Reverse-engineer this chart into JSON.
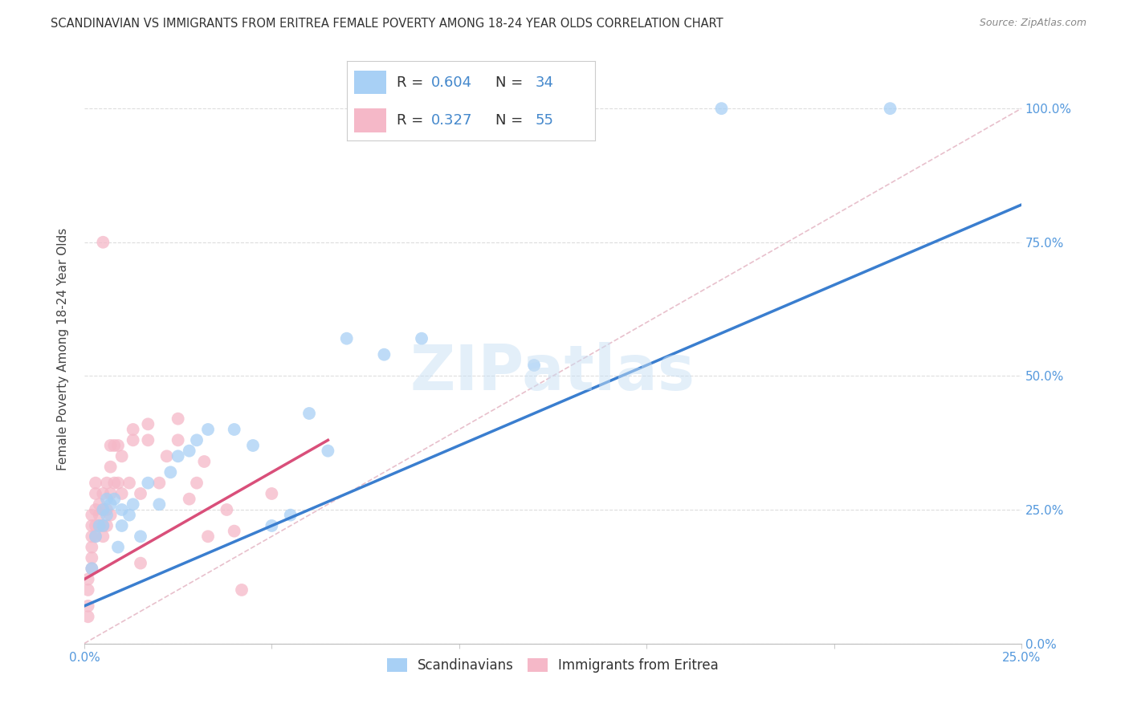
{
  "title": "SCANDINAVIAN VS IMMIGRANTS FROM ERITREA FEMALE POVERTY AMONG 18-24 YEAR OLDS CORRELATION CHART",
  "source": "Source: ZipAtlas.com",
  "ylabel": "Female Poverty Among 18-24 Year Olds",
  "ytick_labels": [
    "0.0%",
    "25.0%",
    "50.0%",
    "75.0%",
    "100.0%"
  ],
  "ytick_values": [
    0,
    0.25,
    0.5,
    0.75,
    1.0
  ],
  "xtick_labels": [
    "0.0%",
    "",
    "",
    "",
    "",
    "25.0%"
  ],
  "xtick_values": [
    0,
    0.05,
    0.1,
    0.15,
    0.2,
    0.25
  ],
  "xlim": [
    0,
    0.25
  ],
  "ylim": [
    0,
    1.1
  ],
  "background_color": "#ffffff",
  "grid_color": "#dddddd",
  "legend_blue_label": "Scandinavians",
  "legend_pink_label": "Immigrants from Eritrea",
  "legend_R_blue": "0.604",
  "legend_N_blue": "34",
  "legend_R_pink": "0.327",
  "legend_N_pink": "55",
  "watermark": "ZIPatlas",
  "blue_color": "#a8d0f5",
  "pink_color": "#f5b8c8",
  "regression_blue_color": "#3a7ecf",
  "regression_pink_color": "#d94f7a",
  "diagonal_color": "#d0d0d0",
  "blue_points": [
    [
      0.002,
      0.14
    ],
    [
      0.003,
      0.2
    ],
    [
      0.004,
      0.22
    ],
    [
      0.005,
      0.22
    ],
    [
      0.005,
      0.25
    ],
    [
      0.006,
      0.24
    ],
    [
      0.006,
      0.27
    ],
    [
      0.007,
      0.26
    ],
    [
      0.008,
      0.27
    ],
    [
      0.009,
      0.18
    ],
    [
      0.01,
      0.22
    ],
    [
      0.01,
      0.25
    ],
    [
      0.012,
      0.24
    ],
    [
      0.013,
      0.26
    ],
    [
      0.015,
      0.2
    ],
    [
      0.017,
      0.3
    ],
    [
      0.02,
      0.26
    ],
    [
      0.023,
      0.32
    ],
    [
      0.025,
      0.35
    ],
    [
      0.028,
      0.36
    ],
    [
      0.03,
      0.38
    ],
    [
      0.033,
      0.4
    ],
    [
      0.04,
      0.4
    ],
    [
      0.045,
      0.37
    ],
    [
      0.05,
      0.22
    ],
    [
      0.055,
      0.24
    ],
    [
      0.06,
      0.43
    ],
    [
      0.065,
      0.36
    ],
    [
      0.07,
      0.57
    ],
    [
      0.08,
      0.54
    ],
    [
      0.09,
      0.57
    ],
    [
      0.12,
      0.52
    ],
    [
      0.17,
      1.0
    ],
    [
      0.215,
      1.0
    ]
  ],
  "pink_points": [
    [
      0.001,
      0.05
    ],
    [
      0.001,
      0.07
    ],
    [
      0.001,
      0.1
    ],
    [
      0.001,
      0.12
    ],
    [
      0.002,
      0.14
    ],
    [
      0.002,
      0.16
    ],
    [
      0.002,
      0.18
    ],
    [
      0.002,
      0.2
    ],
    [
      0.002,
      0.22
    ],
    [
      0.002,
      0.24
    ],
    [
      0.003,
      0.2
    ],
    [
      0.003,
      0.22
    ],
    [
      0.003,
      0.25
    ],
    [
      0.003,
      0.28
    ],
    [
      0.003,
      0.3
    ],
    [
      0.004,
      0.22
    ],
    [
      0.004,
      0.24
    ],
    [
      0.004,
      0.26
    ],
    [
      0.005,
      0.2
    ],
    [
      0.005,
      0.22
    ],
    [
      0.005,
      0.25
    ],
    [
      0.005,
      0.28
    ],
    [
      0.006,
      0.22
    ],
    [
      0.006,
      0.25
    ],
    [
      0.006,
      0.3
    ],
    [
      0.007,
      0.24
    ],
    [
      0.007,
      0.28
    ],
    [
      0.007,
      0.33
    ],
    [
      0.007,
      0.37
    ],
    [
      0.008,
      0.3
    ],
    [
      0.008,
      0.37
    ],
    [
      0.009,
      0.3
    ],
    [
      0.009,
      0.37
    ],
    [
      0.01,
      0.28
    ],
    [
      0.01,
      0.35
    ],
    [
      0.012,
      0.3
    ],
    [
      0.013,
      0.38
    ],
    [
      0.013,
      0.4
    ],
    [
      0.015,
      0.15
    ],
    [
      0.015,
      0.28
    ],
    [
      0.017,
      0.38
    ],
    [
      0.017,
      0.41
    ],
    [
      0.02,
      0.3
    ],
    [
      0.022,
      0.35
    ],
    [
      0.025,
      0.38
    ],
    [
      0.025,
      0.42
    ],
    [
      0.028,
      0.27
    ],
    [
      0.03,
      0.3
    ],
    [
      0.032,
      0.34
    ],
    [
      0.033,
      0.2
    ],
    [
      0.038,
      0.25
    ],
    [
      0.04,
      0.21
    ],
    [
      0.042,
      0.1
    ],
    [
      0.05,
      0.28
    ],
    [
      0.005,
      0.75
    ]
  ],
  "blue_reg_line": [
    [
      0,
      0.07
    ],
    [
      0.25,
      0.82
    ]
  ],
  "pink_reg_line": [
    [
      0,
      0.12
    ],
    [
      0.065,
      0.38
    ]
  ]
}
